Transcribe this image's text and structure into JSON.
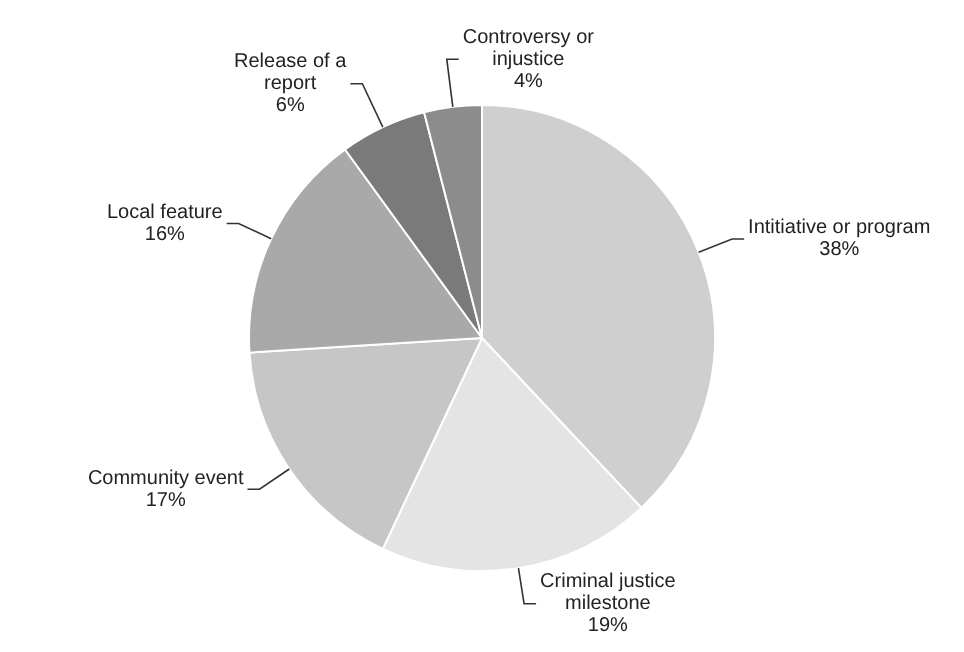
{
  "chart_data": {
    "type": "pie",
    "categories": [
      "Intitiative or program",
      "Criminal justice milestone",
      "Community event",
      "Local feature",
      "Release of a report",
      "Controversy or injustice"
    ],
    "values": [
      38,
      19,
      17,
      16,
      6,
      4
    ],
    "value_labels": [
      "38%",
      "19%",
      "17%",
      "16%",
      "6%",
      "4%"
    ],
    "colors": [
      "#cfcfcf",
      "#e4e4e4",
      "#c6c6c6",
      "#a9a9a9",
      "#7a7a7a",
      "#8c8c8c"
    ]
  }
}
